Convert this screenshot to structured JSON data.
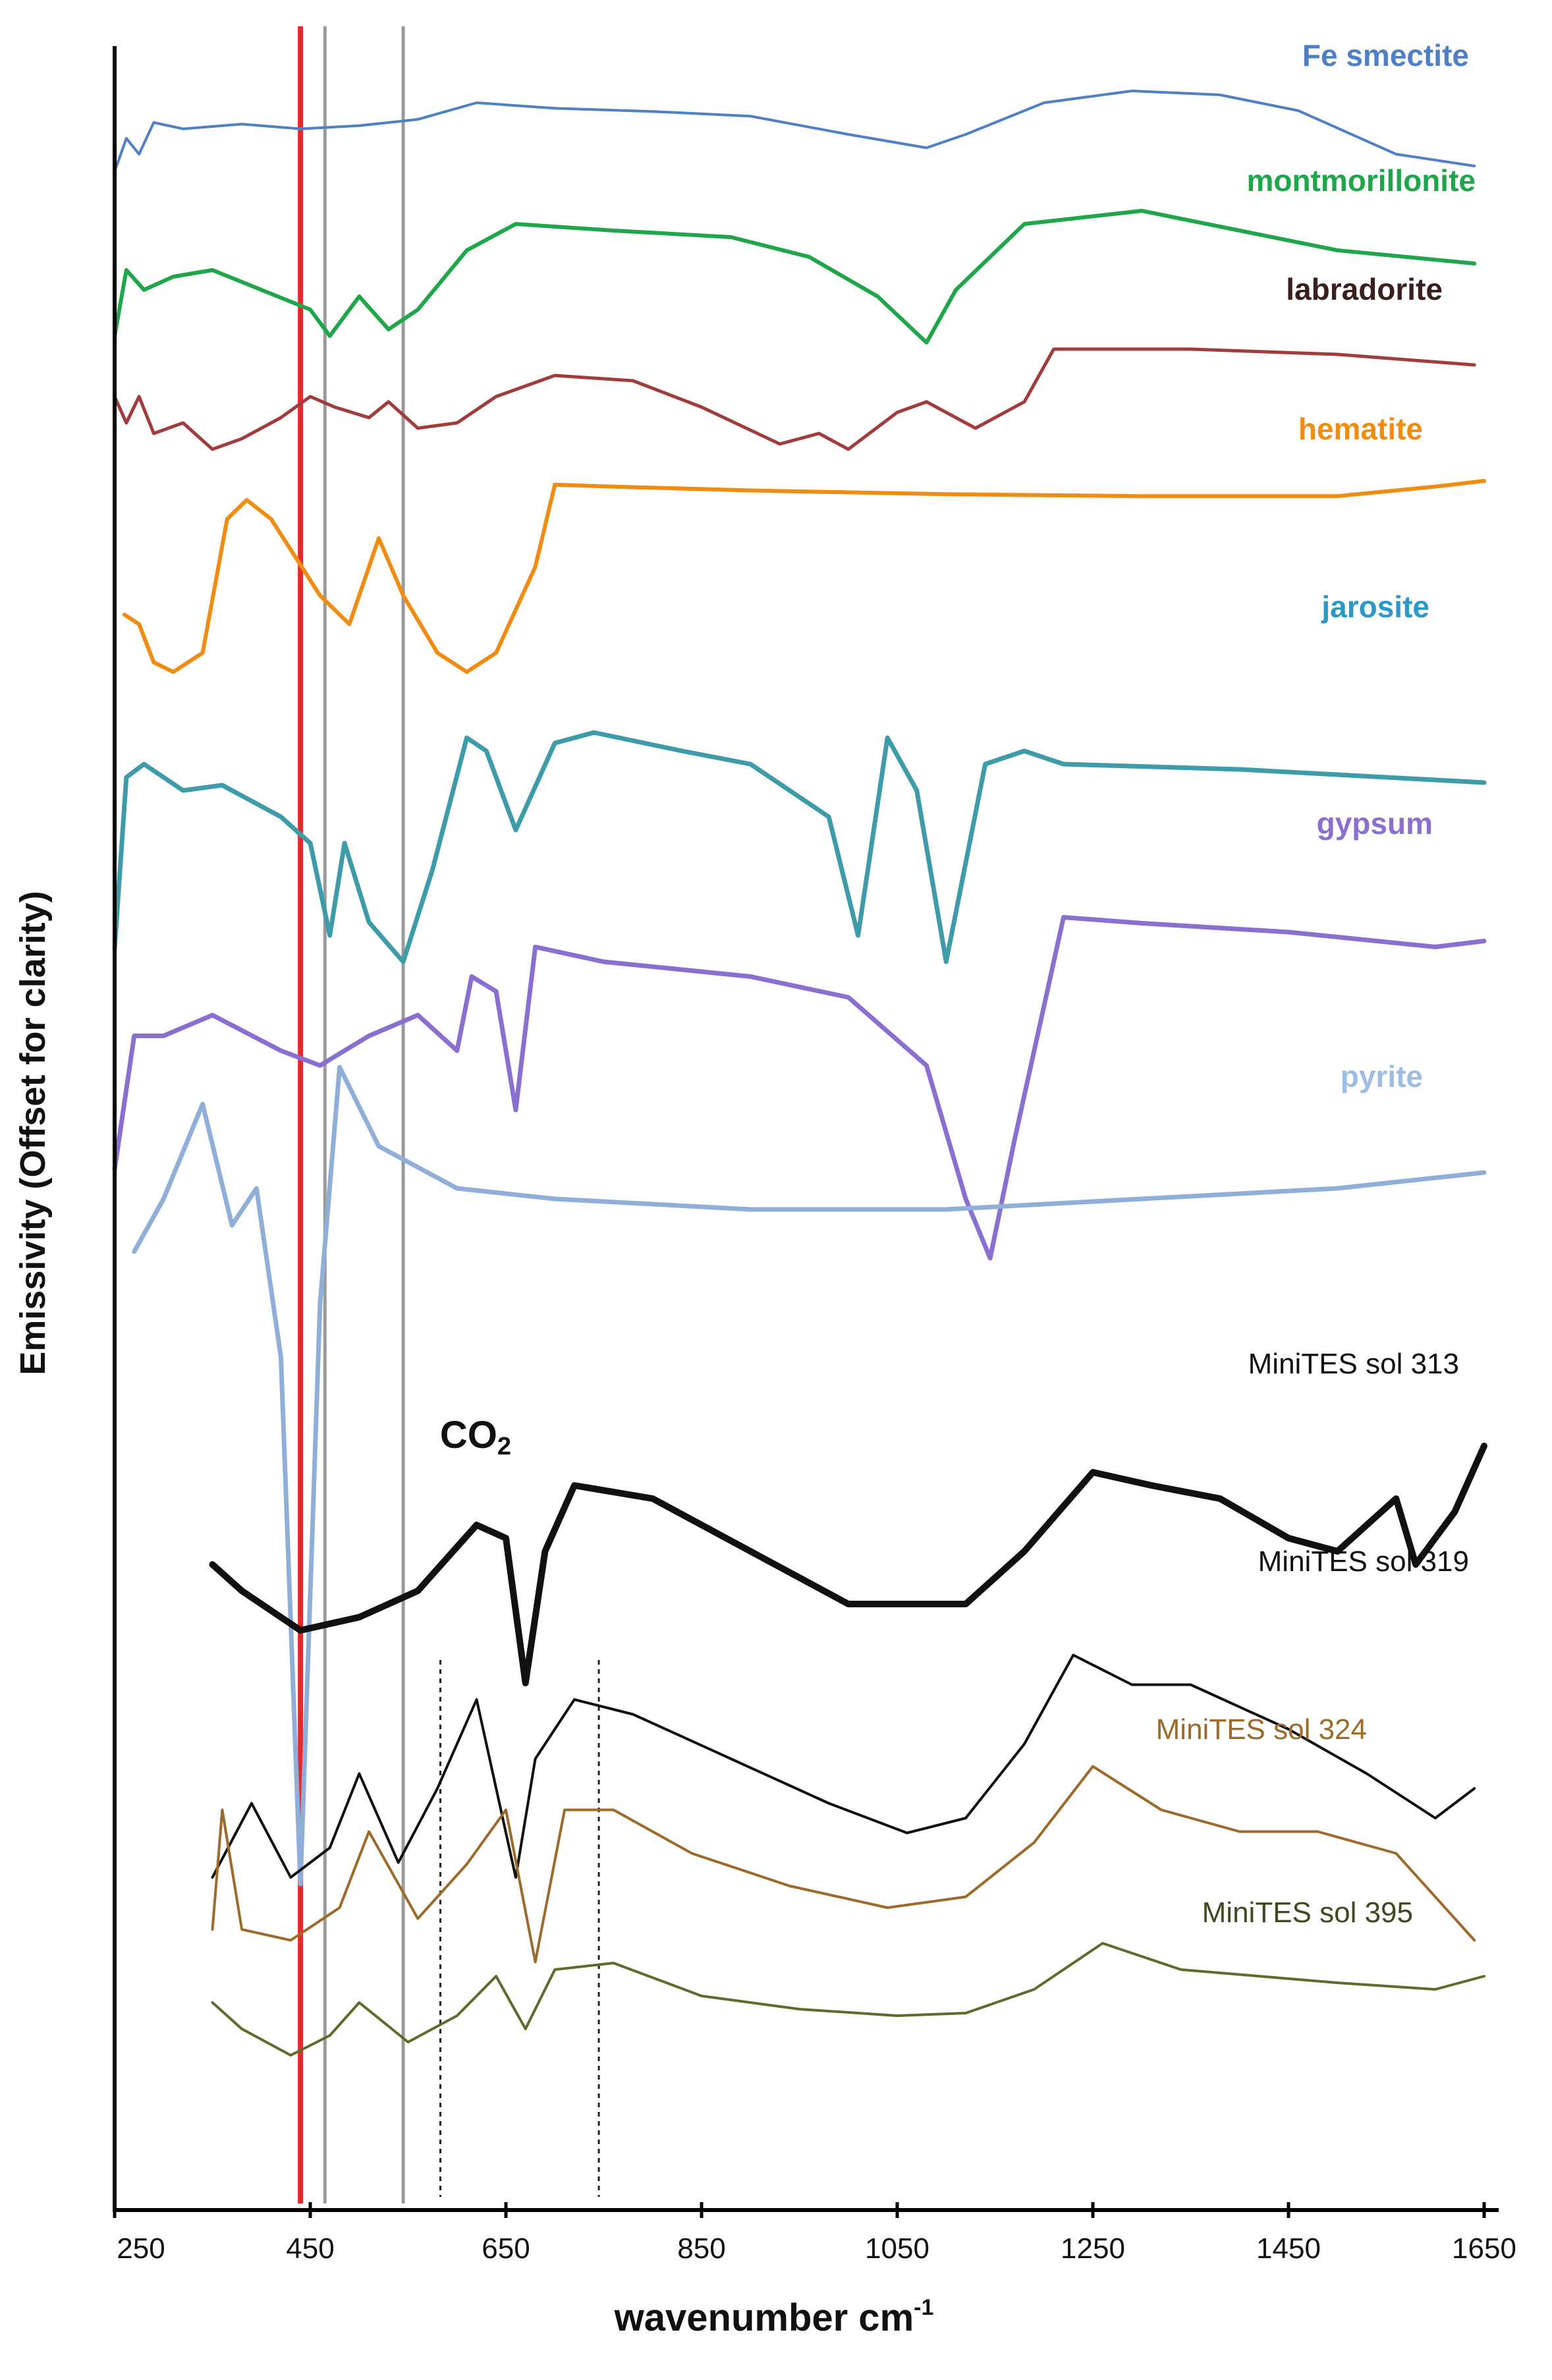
{
  "chart_data": {
    "type": "line",
    "title": "",
    "xlabel": "wavenumber cm",
    "xlabel_superscript": "-1",
    "ylabel": "Emissivity (Offset for clarity)",
    "xlim": [
      250,
      1650
    ],
    "x_ticks": [
      250,
      450,
      650,
      850,
      1050,
      1250,
      1450,
      1650
    ],
    "x_tick_labels": [
      "250",
      "450",
      "650",
      "850",
      "1050",
      "1250",
      "1450",
      "1650"
    ],
    "grid": false,
    "legend": "labels placed beside each spectrum (right side)",
    "reference_lines": [
      {
        "x": 440,
        "style": "solid",
        "color": "#e8282b",
        "name": "red-reference-line"
      },
      {
        "x": 465,
        "style": "solid",
        "color": "#9a9a9a",
        "name": "gray-reference-line-465"
      },
      {
        "x": 545,
        "style": "solid",
        "color": "#9a9a9a",
        "name": "gray-reference-line-545"
      },
      {
        "x": 583,
        "style": "dotted",
        "color": "#222222",
        "name": "dotted-reference-line-583"
      },
      {
        "x": 745,
        "style": "dotted",
        "color": "#222222",
        "name": "dotted-reference-line-745"
      }
    ],
    "annotations": [
      {
        "text": "CO",
        "subscript": "2",
        "x": 660,
        "name": "co2-annotation"
      }
    ],
    "series": [
      {
        "name": "Fe smectite",
        "color": "#4f7fc4",
        "baseline": 0.62,
        "points": [
          [
            250,
            0.08
          ],
          [
            262,
            0.5
          ],
          [
            275,
            0.3
          ],
          [
            290,
            0.7
          ],
          [
            320,
            0.62
          ],
          [
            380,
            0.68
          ],
          [
            440,
            0.62
          ],
          [
            500,
            0.66
          ],
          [
            560,
            0.74
          ],
          [
            620,
            0.95
          ],
          [
            700,
            0.88
          ],
          [
            800,
            0.84
          ],
          [
            900,
            0.78
          ],
          [
            1000,
            0.55
          ],
          [
            1080,
            0.38
          ],
          [
            1120,
            0.55
          ],
          [
            1200,
            0.95
          ],
          [
            1290,
            1.1
          ],
          [
            1380,
            1.05
          ],
          [
            1460,
            0.85
          ],
          [
            1560,
            0.3
          ],
          [
            1640,
            0.15
          ]
        ]
      },
      {
        "name": "montmorillonite",
        "color": "#1fa54a",
        "baseline": 0.55,
        "points": [
          [
            250,
            0.1
          ],
          [
            262,
            0.6
          ],
          [
            280,
            0.45
          ],
          [
            310,
            0.55
          ],
          [
            350,
            0.6
          ],
          [
            400,
            0.45
          ],
          [
            450,
            0.3
          ],
          [
            470,
            0.1
          ],
          [
            500,
            0.4
          ],
          [
            530,
            0.15
          ],
          [
            560,
            0.3
          ],
          [
            610,
            0.75
          ],
          [
            660,
            0.95
          ],
          [
            760,
            0.9
          ],
          [
            880,
            0.85
          ],
          [
            960,
            0.7
          ],
          [
            1030,
            0.4
          ],
          [
            1080,
            0.05
          ],
          [
            1110,
            0.45
          ],
          [
            1180,
            0.95
          ],
          [
            1300,
            1.05
          ],
          [
            1400,
            0.9
          ],
          [
            1500,
            0.75
          ],
          [
            1640,
            0.65
          ]
        ]
      },
      {
        "name": "labradorite",
        "color": "#a03c3c",
        "baseline": 0.45,
        "points": [
          [
            250,
            0.55
          ],
          [
            262,
            0.3
          ],
          [
            275,
            0.55
          ],
          [
            290,
            0.2
          ],
          [
            320,
            0.3
          ],
          [
            350,
            0.05
          ],
          [
            380,
            0.15
          ],
          [
            420,
            0.35
          ],
          [
            450,
            0.55
          ],
          [
            475,
            0.45
          ],
          [
            510,
            0.35
          ],
          [
            530,
            0.5
          ],
          [
            560,
            0.25
          ],
          [
            600,
            0.3
          ],
          [
            640,
            0.55
          ],
          [
            700,
            0.75
          ],
          [
            780,
            0.7
          ],
          [
            850,
            0.45
          ],
          [
            930,
            0.1
          ],
          [
            970,
            0.2
          ],
          [
            1000,
            0.05
          ],
          [
            1050,
            0.4
          ],
          [
            1080,
            0.5
          ],
          [
            1130,
            0.25
          ],
          [
            1180,
            0.5
          ],
          [
            1210,
            1.0
          ],
          [
            1350,
            1.0
          ],
          [
            1500,
            0.95
          ],
          [
            1640,
            0.85
          ]
        ]
      },
      {
        "name": "hematite",
        "color": "#f08c12",
        "baseline": 0.82,
        "points": [
          [
            260,
            0.3
          ],
          [
            275,
            0.25
          ],
          [
            290,
            0.05
          ],
          [
            310,
            0.0
          ],
          [
            340,
            0.1
          ],
          [
            365,
            0.8
          ],
          [
            385,
            0.9
          ],
          [
            410,
            0.8
          ],
          [
            460,
            0.4
          ],
          [
            490,
            0.25
          ],
          [
            520,
            0.7
          ],
          [
            545,
            0.4
          ],
          [
            580,
            0.1
          ],
          [
            610,
            0.0
          ],
          [
            640,
            0.1
          ],
          [
            680,
            0.55
          ],
          [
            700,
            0.98
          ],
          [
            760,
            0.97
          ],
          [
            900,
            0.95
          ],
          [
            1100,
            0.93
          ],
          [
            1300,
            0.92
          ],
          [
            1500,
            0.92
          ],
          [
            1600,
            0.97
          ],
          [
            1650,
            1.0
          ]
        ]
      },
      {
        "name": "jarosite",
        "color": "#3e9ba8",
        "baseline": 0.7,
        "points": [
          [
            250,
            0.1
          ],
          [
            262,
            0.75
          ],
          [
            280,
            0.8
          ],
          [
            320,
            0.7
          ],
          [
            360,
            0.72
          ],
          [
            420,
            0.6
          ],
          [
            450,
            0.5
          ],
          [
            470,
            0.15
          ],
          [
            485,
            0.5
          ],
          [
            510,
            0.2
          ],
          [
            545,
            0.05
          ],
          [
            575,
            0.4
          ],
          [
            610,
            0.9
          ],
          [
            630,
            0.85
          ],
          [
            660,
            0.55
          ],
          [
            700,
            0.88
          ],
          [
            740,
            0.92
          ],
          [
            830,
            0.85
          ],
          [
            900,
            0.8
          ],
          [
            980,
            0.6
          ],
          [
            1010,
            0.15
          ],
          [
            1040,
            0.9
          ],
          [
            1070,
            0.7
          ],
          [
            1100,
            0.05
          ],
          [
            1140,
            0.8
          ],
          [
            1180,
            0.85
          ],
          [
            1220,
            0.8
          ],
          [
            1400,
            0.78
          ],
          [
            1550,
            0.75
          ],
          [
            1650,
            0.73
          ]
        ]
      },
      {
        "name": "gypsum",
        "color": "#8a6fd0",
        "baseline": 0.8,
        "points": [
          [
            250,
            0.1
          ],
          [
            270,
            0.55
          ],
          [
            300,
            0.55
          ],
          [
            350,
            0.62
          ],
          [
            420,
            0.5
          ],
          [
            460,
            0.45
          ],
          [
            510,
            0.55
          ],
          [
            560,
            0.62
          ],
          [
            600,
            0.5
          ],
          [
            615,
            0.75
          ],
          [
            640,
            0.7
          ],
          [
            660,
            0.3
          ],
          [
            680,
            0.85
          ],
          [
            750,
            0.8
          ],
          [
            900,
            0.75
          ],
          [
            1000,
            0.68
          ],
          [
            1080,
            0.45
          ],
          [
            1120,
            0.0
          ],
          [
            1145,
            -0.2
          ],
          [
            1170,
            0.2
          ],
          [
            1220,
            0.95
          ],
          [
            1300,
            0.93
          ],
          [
            1450,
            0.9
          ],
          [
            1600,
            0.85
          ],
          [
            1650,
            0.87
          ]
        ]
      },
      {
        "name": "pyrite",
        "color": "#90afd8",
        "baseline": 0.75,
        "points": [
          [
            270,
            0.6
          ],
          [
            300,
            0.7
          ],
          [
            340,
            0.88
          ],
          [
            370,
            0.65
          ],
          [
            395,
            0.72
          ],
          [
            420,
            0.4
          ],
          [
            440,
            -0.6
          ],
          [
            460,
            0.5
          ],
          [
            480,
            0.95
          ],
          [
            520,
            0.8
          ],
          [
            600,
            0.72
          ],
          [
            700,
            0.7
          ],
          [
            900,
            0.68
          ],
          [
            1100,
            0.68
          ],
          [
            1300,
            0.7
          ],
          [
            1500,
            0.72
          ],
          [
            1650,
            0.75
          ]
        ]
      },
      {
        "name": "MiniTES sol 313",
        "color": "#111111",
        "baseline": 0.5,
        "points": [
          [
            350,
            0.5
          ],
          [
            380,
            0.4
          ],
          [
            420,
            0.3
          ],
          [
            440,
            0.25
          ],
          [
            500,
            0.3
          ],
          [
            560,
            0.4
          ],
          [
            620,
            0.65
          ],
          [
            650,
            0.6
          ],
          [
            670,
            0.05
          ],
          [
            690,
            0.55
          ],
          [
            720,
            0.8
          ],
          [
            800,
            0.75
          ],
          [
            900,
            0.55
          ],
          [
            1000,
            0.35
          ],
          [
            1050,
            0.35
          ],
          [
            1120,
            0.35
          ],
          [
            1180,
            0.55
          ],
          [
            1250,
            0.85
          ],
          [
            1310,
            0.8
          ],
          [
            1380,
            0.75
          ],
          [
            1450,
            0.6
          ],
          [
            1500,
            0.55
          ],
          [
            1560,
            0.75
          ],
          [
            1580,
            0.5
          ],
          [
            1620,
            0.7
          ],
          [
            1650,
            0.95
          ]
        ]
      },
      {
        "name": "MiniTES sol 319",
        "color": "#111111",
        "baseline": 0.5,
        "points": [
          [
            350,
            0.2
          ],
          [
            390,
            0.45
          ],
          [
            430,
            0.2
          ],
          [
            470,
            0.3
          ],
          [
            500,
            0.55
          ],
          [
            540,
            0.25
          ],
          [
            580,
            0.5
          ],
          [
            620,
            0.8
          ],
          [
            660,
            0.2
          ],
          [
            680,
            0.6
          ],
          [
            720,
            0.8
          ],
          [
            780,
            0.75
          ],
          [
            880,
            0.6
          ],
          [
            980,
            0.45
          ],
          [
            1060,
            0.35
          ],
          [
            1120,
            0.4
          ],
          [
            1180,
            0.65
          ],
          [
            1230,
            0.95
          ],
          [
            1290,
            0.85
          ],
          [
            1350,
            0.85
          ],
          [
            1450,
            0.7
          ],
          [
            1530,
            0.55
          ],
          [
            1600,
            0.4
          ],
          [
            1640,
            0.5
          ]
        ]
      },
      {
        "name": "MiniTES sol 324",
        "color": "#9c6a2a",
        "baseline": 0.5,
        "points": [
          [
            350,
            0.2
          ],
          [
            360,
            0.75
          ],
          [
            380,
            0.2
          ],
          [
            430,
            0.15
          ],
          [
            480,
            0.3
          ],
          [
            510,
            0.65
          ],
          [
            560,
            0.25
          ],
          [
            610,
            0.5
          ],
          [
            650,
            0.75
          ],
          [
            680,
            0.05
          ],
          [
            710,
            0.75
          ],
          [
            760,
            0.75
          ],
          [
            840,
            0.55
          ],
          [
            940,
            0.4
          ],
          [
            1040,
            0.3
          ],
          [
            1120,
            0.35
          ],
          [
            1190,
            0.6
          ],
          [
            1250,
            0.95
          ],
          [
            1320,
            0.75
          ],
          [
            1400,
            0.65
          ],
          [
            1480,
            0.65
          ],
          [
            1560,
            0.55
          ],
          [
            1640,
            0.15
          ]
        ]
      },
      {
        "name": "MiniTES sol 395",
        "color": "#5e6b2c",
        "baseline": 0.5,
        "points": [
          [
            350,
            0.5
          ],
          [
            380,
            0.3
          ],
          [
            430,
            0.1
          ],
          [
            470,
            0.25
          ],
          [
            500,
            0.5
          ],
          [
            550,
            0.2
          ],
          [
            600,
            0.4
          ],
          [
            640,
            0.7
          ],
          [
            670,
            0.3
          ],
          [
            700,
            0.75
          ],
          [
            760,
            0.8
          ],
          [
            850,
            0.55
          ],
          [
            950,
            0.45
          ],
          [
            1050,
            0.4
          ],
          [
            1120,
            0.42
          ],
          [
            1190,
            0.6
          ],
          [
            1260,
            0.95
          ],
          [
            1340,
            0.75
          ],
          [
            1420,
            0.7
          ],
          [
            1500,
            0.65
          ],
          [
            1600,
            0.6
          ],
          [
            1650,
            0.7
          ]
        ]
      }
    ]
  }
}
